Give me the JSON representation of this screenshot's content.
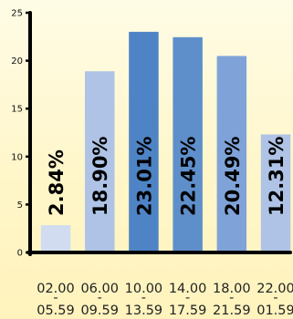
{
  "chart_data": {
    "type": "bar",
    "categories": [
      [
        "02.00",
        "-",
        "05.59"
      ],
      [
        "06.00",
        "-",
        "09.59"
      ],
      [
        "10.00",
        "-",
        "13.59"
      ],
      [
        "14.00",
        "-",
        "17.59"
      ],
      [
        "18.00",
        "-",
        "21.59"
      ],
      [
        "22.00",
        "-",
        "01.59"
      ]
    ],
    "values": [
      2.84,
      18.9,
      23.01,
      22.45,
      20.49,
      12.31
    ],
    "data_labels": [
      "2.84%",
      "18.90%",
      "23.01%",
      "22.45%",
      "20.49%",
      "12.31%"
    ],
    "bar_colors": [
      "#d1dcf0",
      "#aec3e5",
      "#4e84c5",
      "#5f8fcb",
      "#7fa3d8",
      "#aec3e5"
    ],
    "ylim": [
      0,
      25
    ],
    "yticks": [
      0,
      5,
      10,
      15,
      20,
      25
    ],
    "title": "",
    "xlabel": "",
    "ylabel": "",
    "grid": false,
    "legend": "none"
  }
}
